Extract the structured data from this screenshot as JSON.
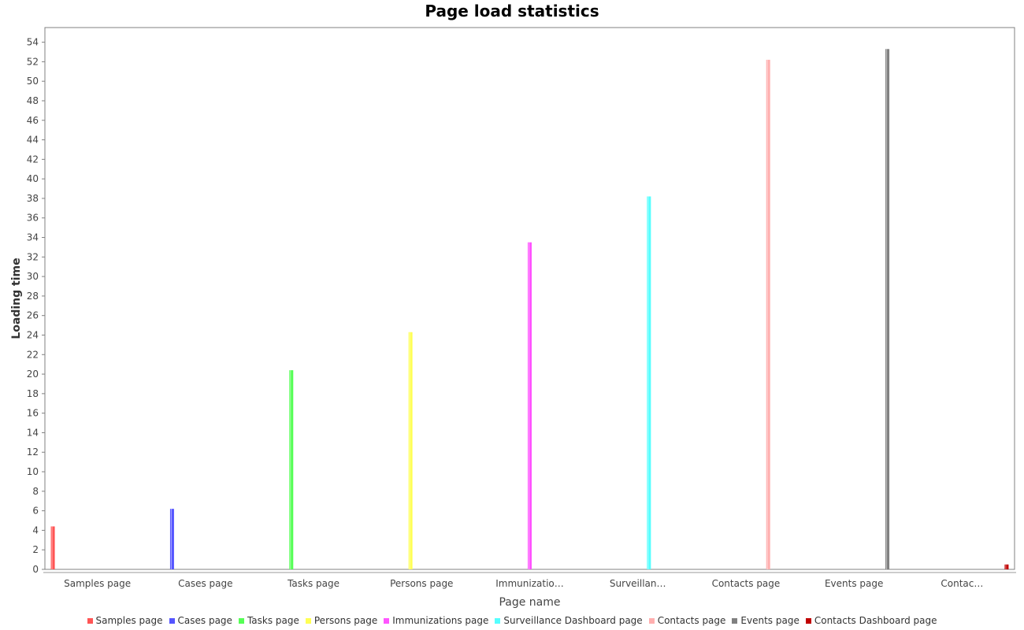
{
  "chart_data": {
    "type": "bar",
    "title": "Page load statistics",
    "xlabel": "Page name",
    "ylabel": "Loading time",
    "categories": [
      "Samples page",
      "Cases page",
      "Tasks page",
      "Persons page",
      "Immunizatio…",
      "Surveillan…",
      "Contacts page",
      "Events page",
      "Contac…"
    ],
    "series": [
      {
        "name": "Samples page",
        "color": "#ff5555",
        "category_index": 0,
        "value": 4.4
      },
      {
        "name": "Cases page",
        "color": "#5555ff",
        "category_index": 1,
        "value": 6.2
      },
      {
        "name": "Tasks page",
        "color": "#55ff55",
        "category_index": 2,
        "value": 20.4
      },
      {
        "name": "Persons page",
        "color": "#ffff55",
        "category_index": 3,
        "value": 24.3
      },
      {
        "name": "Immunizations page",
        "color": "#ff55ff",
        "category_index": 4,
        "value": 33.5
      },
      {
        "name": "Surveillance Dashboard page",
        "color": "#55ffff",
        "category_index": 5,
        "value": 38.2
      },
      {
        "name": "Contacts page",
        "color": "#ffafaf",
        "category_index": 6,
        "value": 52.2
      },
      {
        "name": "Events page",
        "color": "#808080",
        "category_index": 7,
        "value": 53.3
      },
      {
        "name": "Contacts Dashboard page",
        "color": "#c00000",
        "category_index": 8,
        "value": 0.5
      }
    ],
    "ylim": [
      0,
      55.5
    ],
    "yticks": [
      0,
      2,
      4,
      6,
      8,
      10,
      12,
      14,
      16,
      18,
      20,
      22,
      24,
      26,
      28,
      30,
      32,
      34,
      36,
      38,
      40,
      42,
      44,
      46,
      48,
      50,
      52,
      54
    ],
    "grid": false,
    "legend": "bottom"
  }
}
